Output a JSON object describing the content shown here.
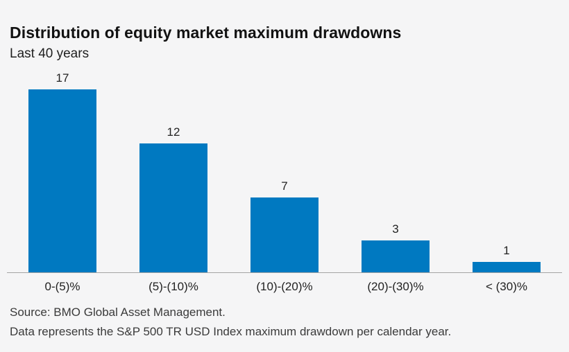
{
  "chart_data": {
    "type": "bar",
    "title": "Distribution of equity market maximum drawdowns",
    "subtitle": "Last 40 years",
    "categories": [
      "0-(5)%",
      "(5)-(10)%",
      "(10)-(20)%",
      "(20)-(30)%",
      "< (30)%"
    ],
    "values": [
      17,
      12,
      7,
      3,
      1
    ],
    "value_labels": [
      17,
      12,
      7,
      3,
      1
    ],
    "bar_color": "#0079c1",
    "background_color": "#f5f5f6",
    "axis_line_color": "#a3a3a3",
    "ylim": [
      0,
      17
    ],
    "grid": false,
    "legend": false,
    "xlabel": "",
    "ylabel": ""
  },
  "footer": {
    "source_line": "Source: BMO Global Asset Management.",
    "data_line": "Data represents the S&P 500 TR USD Index maximum drawdown per calendar year."
  }
}
